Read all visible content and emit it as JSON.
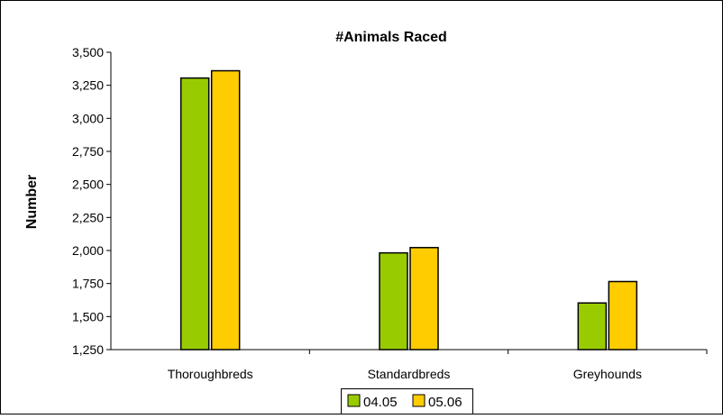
{
  "chart_data": {
    "type": "bar",
    "title": "#Animals Raced",
    "xlabel": "",
    "ylabel": "Number",
    "categories": [
      "Thoroughbreds",
      "Standardbreds",
      "Greyhounds"
    ],
    "series": [
      {
        "name": "04.05",
        "color": "#99CC00",
        "values": [
          3305,
          1982,
          1603
        ]
      },
      {
        "name": "05.06",
        "color": "#FFCC00",
        "values": [
          3360,
          2022,
          1765
        ]
      }
    ],
    "ylim": [
      1250,
      3500
    ],
    "yticks": [
      1250,
      1500,
      1750,
      2000,
      2250,
      2500,
      2750,
      3000,
      3250,
      3500
    ],
    "ytick_labels": [
      "1,250",
      "1,500",
      "1,750",
      "2,000",
      "2,250",
      "2,500",
      "2,750",
      "3,000",
      "3,250",
      "3,500"
    ],
    "grid": false,
    "legend_position": "bottom"
  }
}
